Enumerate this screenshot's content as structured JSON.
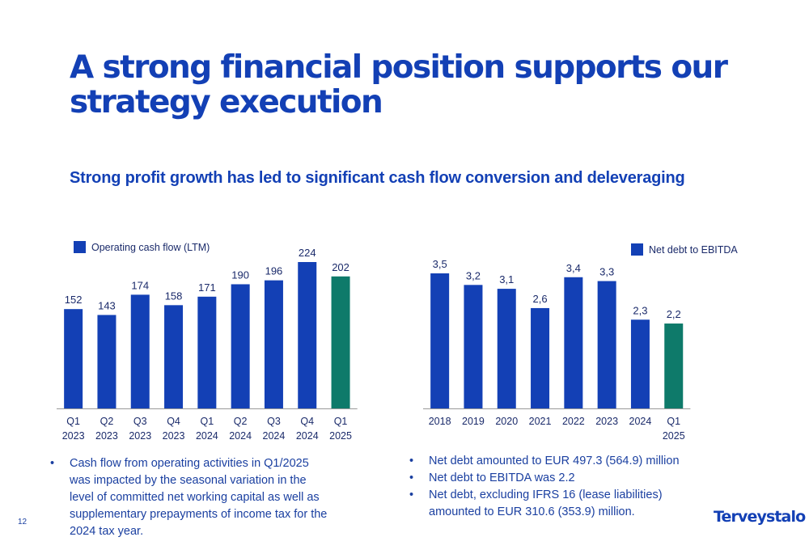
{
  "slide": {
    "title": "A strong financial position supports our strategy execution",
    "subtitle": "Strong profit growth has led to significant cash flow conversion and deleveraging",
    "page_number": "12",
    "logo_text": "Terveystalo"
  },
  "colors": {
    "primary_blue": "#1340b5",
    "highlight_green": "#0e7a6a",
    "axis": "#9a9a9a"
  },
  "chart_data": [
    {
      "type": "bar",
      "categories": [
        [
          "Q1",
          "2023"
        ],
        [
          "Q2",
          "2023"
        ],
        [
          "Q3",
          "2023"
        ],
        [
          "Q4",
          "2023"
        ],
        [
          "Q1",
          "2024"
        ],
        [
          "Q2",
          "2024"
        ],
        [
          "Q3",
          "2024"
        ],
        [
          "Q4",
          "2024"
        ],
        [
          "Q1",
          "2025"
        ]
      ],
      "values": [
        152,
        143,
        174,
        158,
        171,
        190,
        196,
        224,
        202
      ],
      "value_labels": [
        "152",
        "143",
        "174",
        "158",
        "171",
        "190",
        "196",
        "224",
        "202"
      ],
      "highlight_index": 8,
      "legend": "Operating cash flow (LTM)",
      "legend_position": "top-left",
      "ylim": [
        0,
        224
      ],
      "grid": false
    },
    {
      "type": "bar",
      "categories": [
        [
          "2018"
        ],
        [
          "2019"
        ],
        [
          "2020"
        ],
        [
          "2021"
        ],
        [
          "2022"
        ],
        [
          "2023"
        ],
        [
          "2024"
        ],
        [
          "Q1",
          "2025"
        ]
      ],
      "values": [
        3.5,
        3.2,
        3.1,
        2.6,
        3.4,
        3.3,
        2.3,
        2.2
      ],
      "value_labels": [
        "3,5",
        "3,2",
        "3,1",
        "2,6",
        "3,4",
        "3,3",
        "2,3",
        "2,2"
      ],
      "highlight_index": 7,
      "legend": "Net debt to EBITDA",
      "legend_position": "top-right",
      "ylim": [
        0,
        3.5
      ],
      "grid": false
    }
  ],
  "notes_left": [
    "Cash flow from operating activities in Q1/2025 was impacted by the seasonal variation in the level of committed net working capital as well as supplementary prepayments of income tax for the 2024 tax year."
  ],
  "notes_right": [
    "Net debt amounted to EUR 497.3 (564.9) million",
    "Net debt to EBITDA was 2.2",
    "Net debt, excluding IFRS 16 (lease liabilities) amounted to EUR 310.6 (353.9) million."
  ]
}
